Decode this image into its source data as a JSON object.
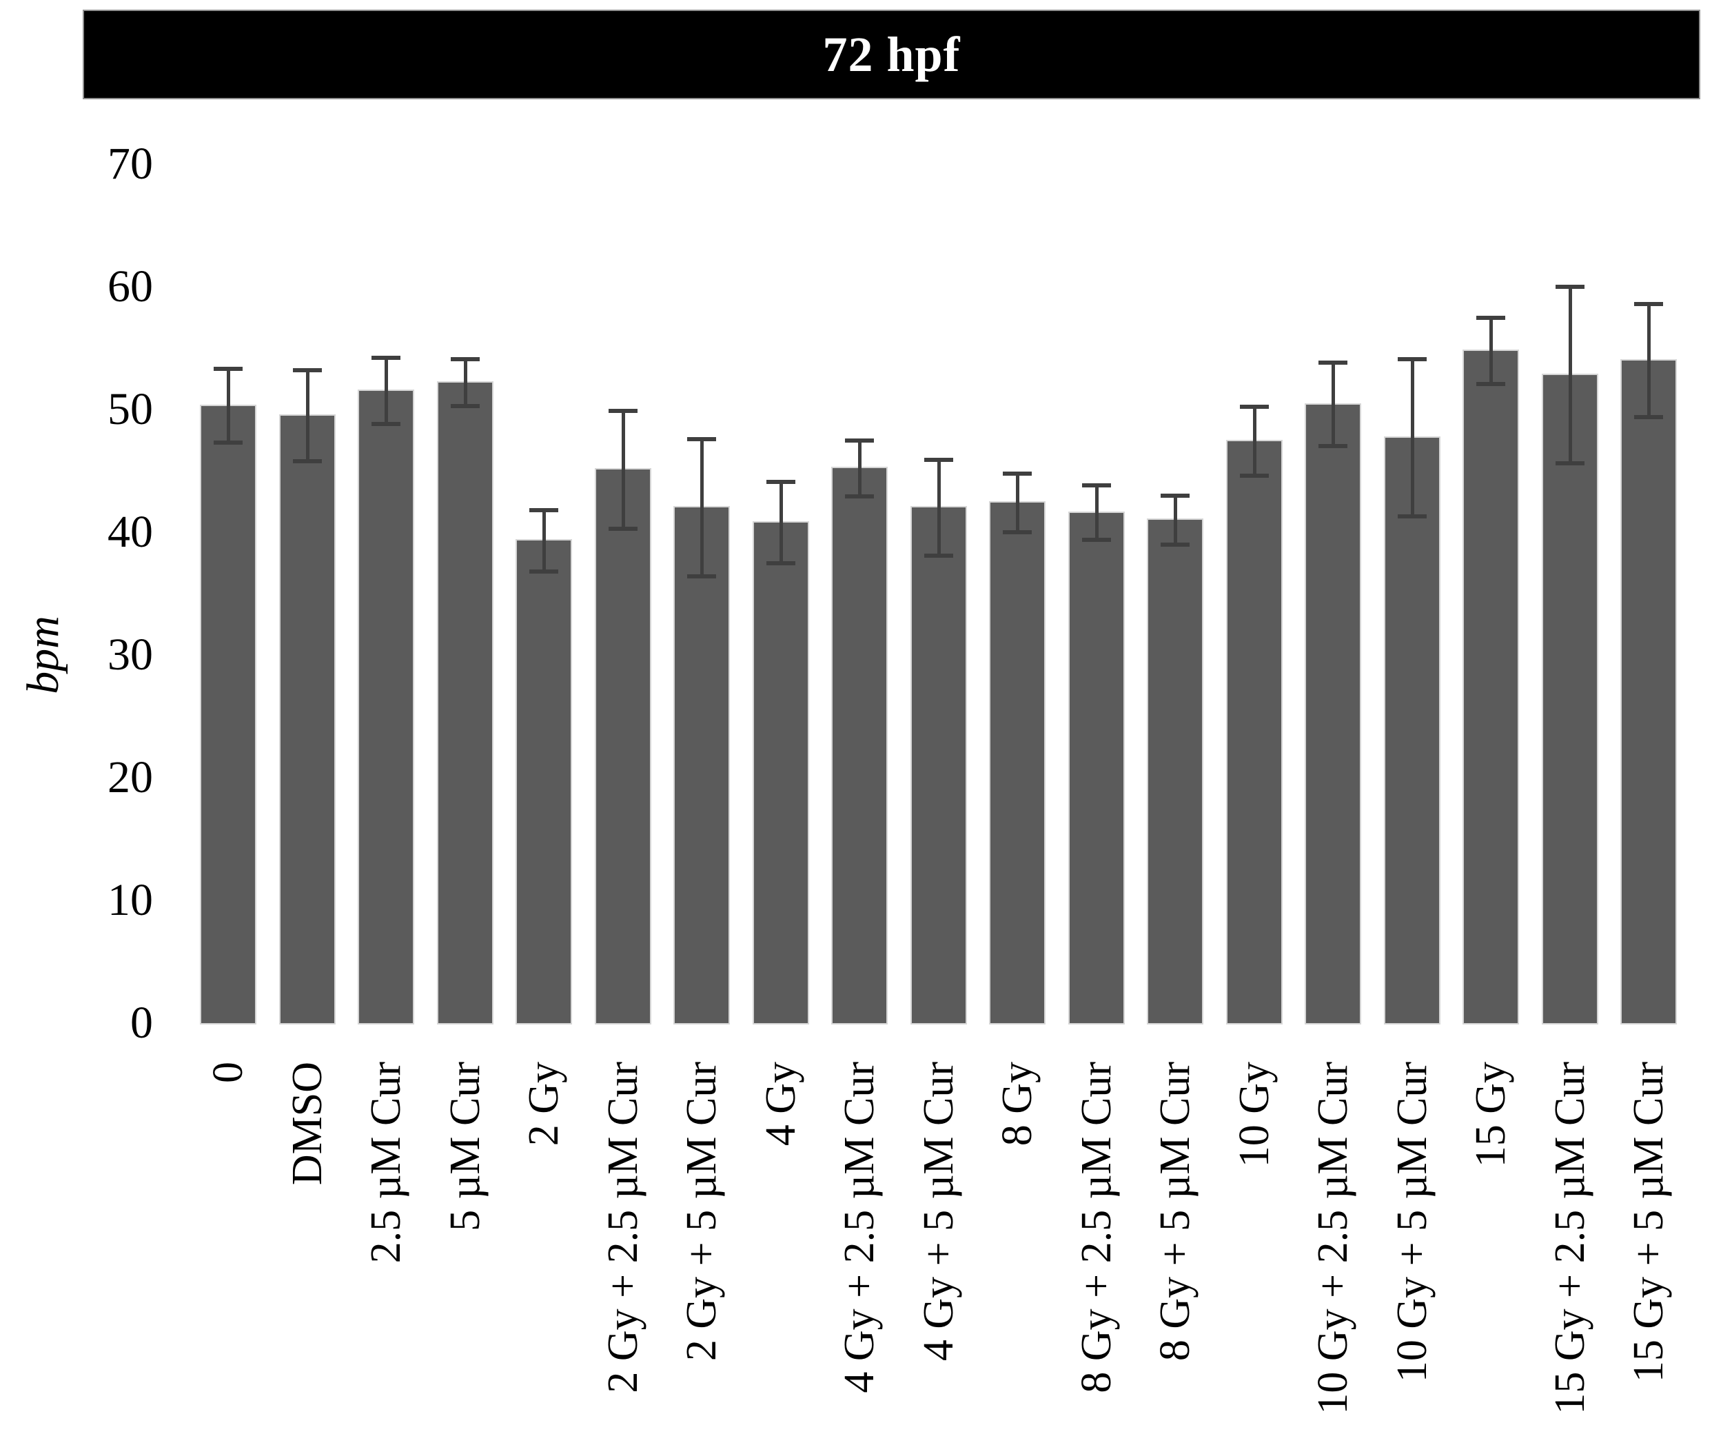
{
  "header": {
    "title": "72 hpf",
    "bg_color": "#000000",
    "text_color": "#ffffff"
  },
  "chart_data": {
    "type": "bar",
    "title": "72 hpf",
    "xlabel": "",
    "ylabel": "bpm",
    "ylim": [
      0,
      70
    ],
    "yticks": [
      0,
      10,
      20,
      30,
      40,
      50,
      60,
      70
    ],
    "grid": false,
    "legend": false,
    "error_bars": "symmetric",
    "bar_color": "#5b5b5b",
    "error_color": "#3f3f3f",
    "categories": [
      "0",
      "DMSO",
      "2.5 µM Cur",
      "5 µM Cur",
      "2 Gy",
      "2 Gy + 2.5 µM Cur",
      "2 Gy + 5 µM Cur",
      "4 Gy",
      "4 Gy + 2.5 µM Cur",
      "4 Gy + 5 µM Cur",
      "8 Gy",
      "8 Gy + 2.5 µM Cur",
      "8 Gy + 5 µM Cur",
      "10 Gy",
      "10 Gy + 2.5 µM Cur",
      "10 Gy + 5 µM Cur",
      "15 Gy",
      "15 Gy + 2.5 µM Cur",
      "15 Gy + 5 µM Cur"
    ],
    "values": [
      50.3,
      49.5,
      51.5,
      52.2,
      39.3,
      45.1,
      42.0,
      40.8,
      45.2,
      42.0,
      42.4,
      41.6,
      41.0,
      47.4,
      50.4,
      47.7,
      54.8,
      52.8,
      54.0
    ],
    "errors": [
      3.0,
      3.7,
      2.7,
      1.9,
      2.5,
      4.8,
      5.6,
      3.3,
      2.3,
      3.9,
      2.4,
      2.2,
      2.0,
      2.8,
      3.4,
      6.4,
      2.7,
      7.2,
      4.6
    ]
  }
}
